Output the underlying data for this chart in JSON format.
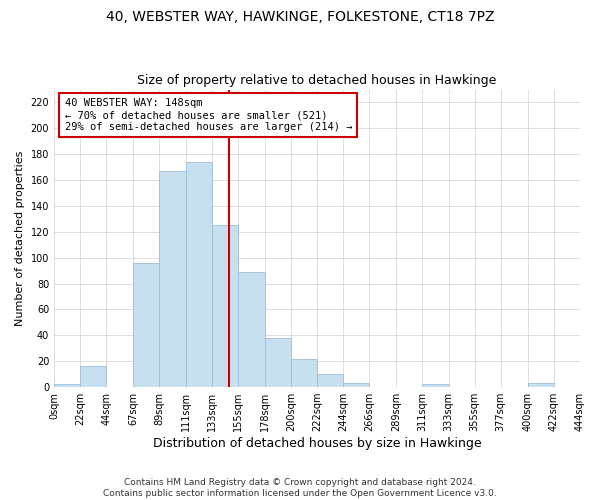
{
  "title": "40, WEBSTER WAY, HAWKINGE, FOLKESTONE, CT18 7PZ",
  "subtitle": "Size of property relative to detached houses in Hawkinge",
  "xlabel": "Distribution of detached houses by size in Hawkinge",
  "ylabel": "Number of detached properties",
  "bar_color": "#c8dff0",
  "bar_edge_color": "#9bbfd8",
  "background_color": "#ffffff",
  "grid_color": "#d0d0d0",
  "vline_value": 148,
  "vline_color": "#cc0000",
  "annotation_line1": "40 WEBSTER WAY: 148sqm",
  "annotation_line2": "← 70% of detached houses are smaller (521)",
  "annotation_line3": "29% of semi-detached houses are larger (214) →",
  "annotation_box_edge": "#cc0000",
  "bins": [
    0,
    22,
    44,
    67,
    89,
    111,
    133,
    155,
    178,
    200,
    222,
    244,
    266,
    289,
    311,
    333,
    355,
    377,
    400,
    422,
    444
  ],
  "bar_heights": [
    2,
    16,
    0,
    96,
    167,
    174,
    125,
    89,
    38,
    22,
    10,
    3,
    0,
    0,
    2,
    0,
    0,
    0,
    3,
    0
  ],
  "ylim": [
    0,
    230
  ],
  "yticks": [
    0,
    20,
    40,
    60,
    80,
    100,
    120,
    140,
    160,
    180,
    200,
    220
  ],
  "footer_text": "Contains HM Land Registry data © Crown copyright and database right 2024.\nContains public sector information licensed under the Open Government Licence v3.0.",
  "title_fontsize": 10,
  "subtitle_fontsize": 9,
  "xlabel_fontsize": 9,
  "ylabel_fontsize": 8,
  "tick_fontsize": 7,
  "footer_fontsize": 6.5
}
